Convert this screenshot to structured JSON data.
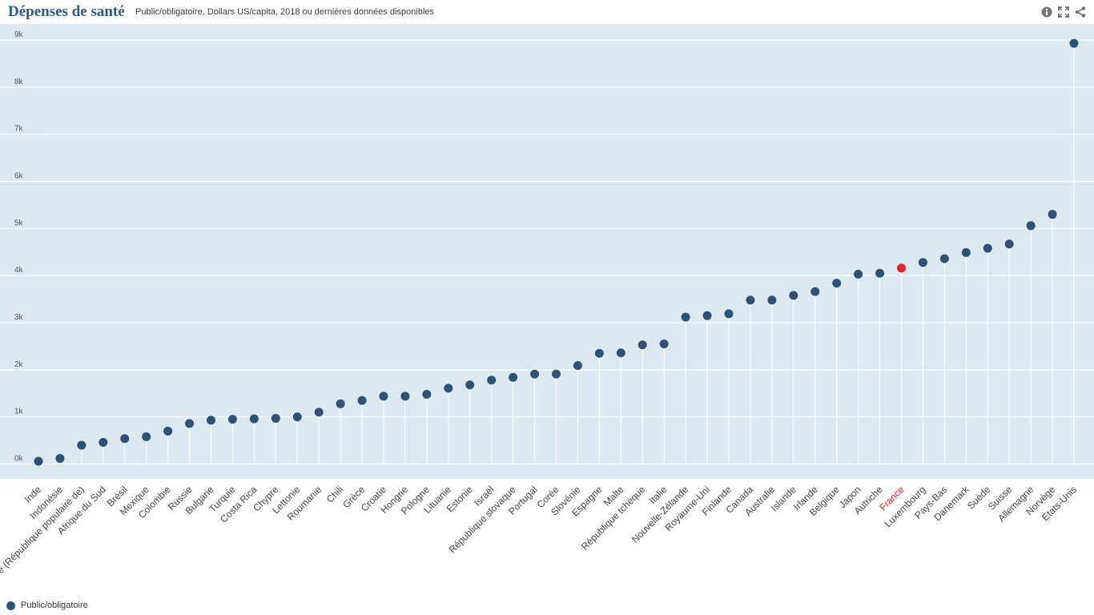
{
  "header": {
    "title": "Dépenses de santé",
    "subtitle": "Public/obligatoire, Dollars US/capita, 2018 ou dernières données disponibles"
  },
  "toolbar": {
    "icons": [
      "info-icon",
      "fullscreen-icon",
      "share-icon"
    ]
  },
  "colors": {
    "plot_background": "#dde9f1",
    "series": "#2e5277",
    "highlight": "#e3262d",
    "gridline": "#ffffff",
    "stem": "#ffffff",
    "label": "#555555"
  },
  "legend": {
    "label": "Public/obligatoire"
  },
  "chart_data": {
    "type": "scatter",
    "style": "lollipop",
    "xlabel": "",
    "ylabel": "",
    "ylim": [
      -200,
      9100
    ],
    "y_ticks": [
      0,
      1000,
      2000,
      3000,
      4000,
      5000,
      6000,
      7000,
      8000,
      9000
    ],
    "y_tick_labels": [
      "0k",
      "1k",
      "2k",
      "3k",
      "4k",
      "5k",
      "6k",
      "7k",
      "8k",
      "9k"
    ],
    "grid": true,
    "legend_position": "bottom-left",
    "highlight_category": "France",
    "categories": [
      "Inde",
      "Indonésie",
      "Chine (République populaire de)",
      "Afrique du Sud",
      "Brésil",
      "Mexique",
      "Colombie",
      "Russie",
      "Bulgarie",
      "Turquie",
      "Costa Rica",
      "Chypre",
      "Lettonie",
      "Roumanie",
      "Chili",
      "Grèce",
      "Croatie",
      "Hongrie",
      "Pologne",
      "Lituanie",
      "Estonie",
      "Israël",
      "République slovaque",
      "Portugal",
      "Corée",
      "Slovénie",
      "Espagne",
      "Malte",
      "République tchèque",
      "Italie",
      "Nouvelle-Zélande",
      "Royaume-Uni",
      "Finlande",
      "Canada",
      "Australie",
      "Islande",
      "Irlande",
      "Belgique",
      "Japon",
      "Autriche",
      "France",
      "Luxembourg",
      "Pays-Bas",
      "Danemark",
      "Suède",
      "Suisse",
      "Allemagne",
      "Norvège",
      "États-Unis"
    ],
    "series": [
      {
        "name": "Public/obligatoire",
        "values": [
          60,
          120,
          400,
          460,
          540,
          580,
          700,
          860,
          930,
          950,
          960,
          970,
          1000,
          1100,
          1280,
          1350,
          1440,
          1440,
          1480,
          1610,
          1680,
          1780,
          1840,
          1910,
          1910,
          2090,
          2350,
          2360,
          2530,
          2550,
          3120,
          3150,
          3190,
          3480,
          3480,
          3580,
          3660,
          3840,
          4030,
          4050,
          4160,
          4280,
          4360,
          4490,
          4580,
          4670,
          5060,
          5300,
          8930
        ]
      }
    ]
  }
}
